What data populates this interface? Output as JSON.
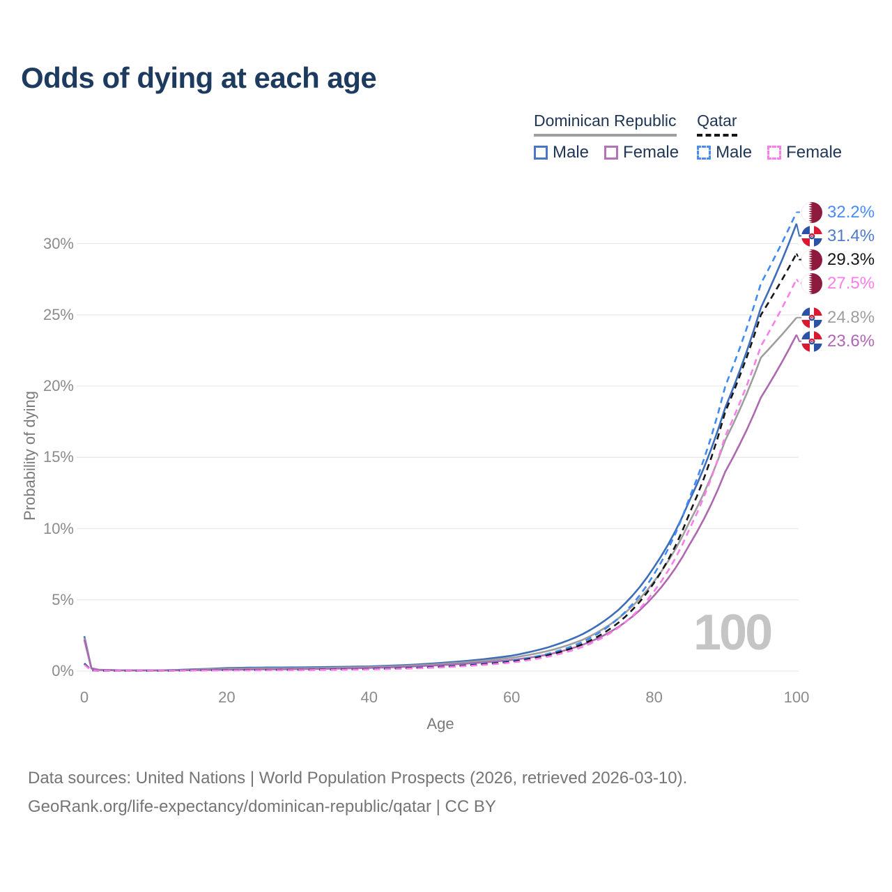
{
  "title": "Odds of dying at each age",
  "legend": {
    "groups": [
      {
        "name": "Dominican Republic",
        "line_style": "solid",
        "line_color": "#9e9e9e",
        "items": [
          {
            "label": "Male",
            "color": "#4a77c4",
            "dashed": false
          },
          {
            "label": "Female",
            "color": "#b672b8",
            "dashed": false
          }
        ]
      },
      {
        "name": "Qatar",
        "line_style": "dashed",
        "line_color": "#161616",
        "items": [
          {
            "label": "Male",
            "color": "#4a8cf5",
            "dashed": true
          },
          {
            "label": "Female",
            "color": "#fb7de9",
            "dashed": true
          }
        ]
      }
    ]
  },
  "axes": {
    "ylabel": "Probability of dying",
    "xlabel": "Age"
  },
  "watermark": "100",
  "footer": {
    "line1": "Data sources: United Nations | World Population Prospects (2026, retrieved 2026-03-10).",
    "line2": "GeoRank.org/life-expectancy/dominican-republic/qatar | CC BY"
  },
  "chart_data": {
    "type": "line",
    "title": "Odds of dying at each age",
    "xlabel": "Age",
    "ylabel": "Probability of dying",
    "xlim": [
      0,
      103
    ],
    "ylim": [
      0,
      33.5
    ],
    "xticks": [
      0,
      20,
      40,
      60,
      80,
      100
    ],
    "yticks": [
      0,
      5,
      10,
      15,
      20,
      25,
      30
    ],
    "ytick_suffix": "%",
    "grid": "horizontal",
    "legend_position": "top-right",
    "ages": [
      0,
      1,
      2,
      5,
      10,
      15,
      20,
      25,
      30,
      35,
      40,
      45,
      50,
      55,
      60,
      65,
      70,
      75,
      80,
      85,
      90,
      95,
      100
    ],
    "series": [
      {
        "name": "Dominican Republic — Male",
        "country": "Dominican Republic",
        "group": "Male",
        "style": "solid",
        "color": "#3d6db8",
        "label_color": "#4f7ac9",
        "flag": "dominican-republic",
        "end_label": "31.4%",
        "values": [
          2.45,
          0.2,
          0.1,
          0.06,
          0.05,
          0.12,
          0.22,
          0.25,
          0.26,
          0.29,
          0.33,
          0.42,
          0.57,
          0.78,
          1.08,
          1.65,
          2.6,
          4.3,
          7.3,
          12.0,
          18.5,
          25.5,
          31.4
        ]
      },
      {
        "name": "Dominican Republic — Combined",
        "country": "Dominican Republic",
        "group": "Combined",
        "style": "solid",
        "color": "#9e9e9e",
        "label_color": "#9e9e9e",
        "flag": "dominican-republic",
        "end_label": "24.8%",
        "values": [
          2.33,
          0.19,
          0.09,
          0.055,
          0.045,
          0.1,
          0.16,
          0.19,
          0.2,
          0.23,
          0.28,
          0.36,
          0.5,
          0.68,
          0.93,
          1.4,
          2.2,
          3.7,
          6.3,
          10.5,
          16.2,
          22.0,
          24.8
        ]
      },
      {
        "name": "Dominican Republic — Female",
        "country": "Dominican Republic",
        "group": "Female",
        "style": "solid",
        "color": "#ae68b0",
        "label_color": "#b066b6",
        "flag": "dominican-republic",
        "end_label": "23.6%",
        "values": [
          2.2,
          0.17,
          0.08,
          0.05,
          0.04,
          0.07,
          0.1,
          0.12,
          0.14,
          0.17,
          0.22,
          0.3,
          0.42,
          0.57,
          0.78,
          1.15,
          1.85,
          3.1,
          5.3,
          8.9,
          14.0,
          19.2,
          23.6
        ]
      },
      {
        "name": "Qatar — Male",
        "country": "Qatar",
        "group": "Male",
        "style": "dashed",
        "color": "#3f8af2",
        "label_color": "#4a8cf5",
        "flag": "qatar",
        "end_label": "32.2%",
        "values": [
          0.55,
          0.05,
          0.03,
          0.02,
          0.02,
          0.05,
          0.08,
          0.09,
          0.1,
          0.12,
          0.16,
          0.22,
          0.32,
          0.48,
          0.72,
          1.2,
          2.05,
          3.7,
          6.8,
          12.2,
          20.0,
          27.2,
          32.2
        ]
      },
      {
        "name": "Qatar — Combined",
        "country": "Qatar",
        "group": "Combined",
        "style": "dashed",
        "color": "#161616",
        "label_color": "#161616",
        "flag": "qatar",
        "end_label": "29.3%",
        "values": [
          0.5,
          0.045,
          0.028,
          0.019,
          0.019,
          0.045,
          0.07,
          0.08,
          0.09,
          0.11,
          0.14,
          0.2,
          0.29,
          0.44,
          0.66,
          1.1,
          1.9,
          3.4,
          6.2,
          11.1,
          18.2,
          25.0,
          29.3
        ]
      },
      {
        "name": "Qatar — Female",
        "country": "Qatar",
        "group": "Female",
        "style": "dashed",
        "color": "#fb7de9",
        "label_color": "#fb7de9",
        "flag": "qatar",
        "end_label": "27.5%",
        "values": [
          0.45,
          0.04,
          0.025,
          0.018,
          0.018,
          0.035,
          0.05,
          0.06,
          0.07,
          0.09,
          0.12,
          0.17,
          0.26,
          0.4,
          0.6,
          1.0,
          1.7,
          3.05,
          5.6,
          10.0,
          16.5,
          22.8,
          27.5
        ]
      }
    ]
  }
}
